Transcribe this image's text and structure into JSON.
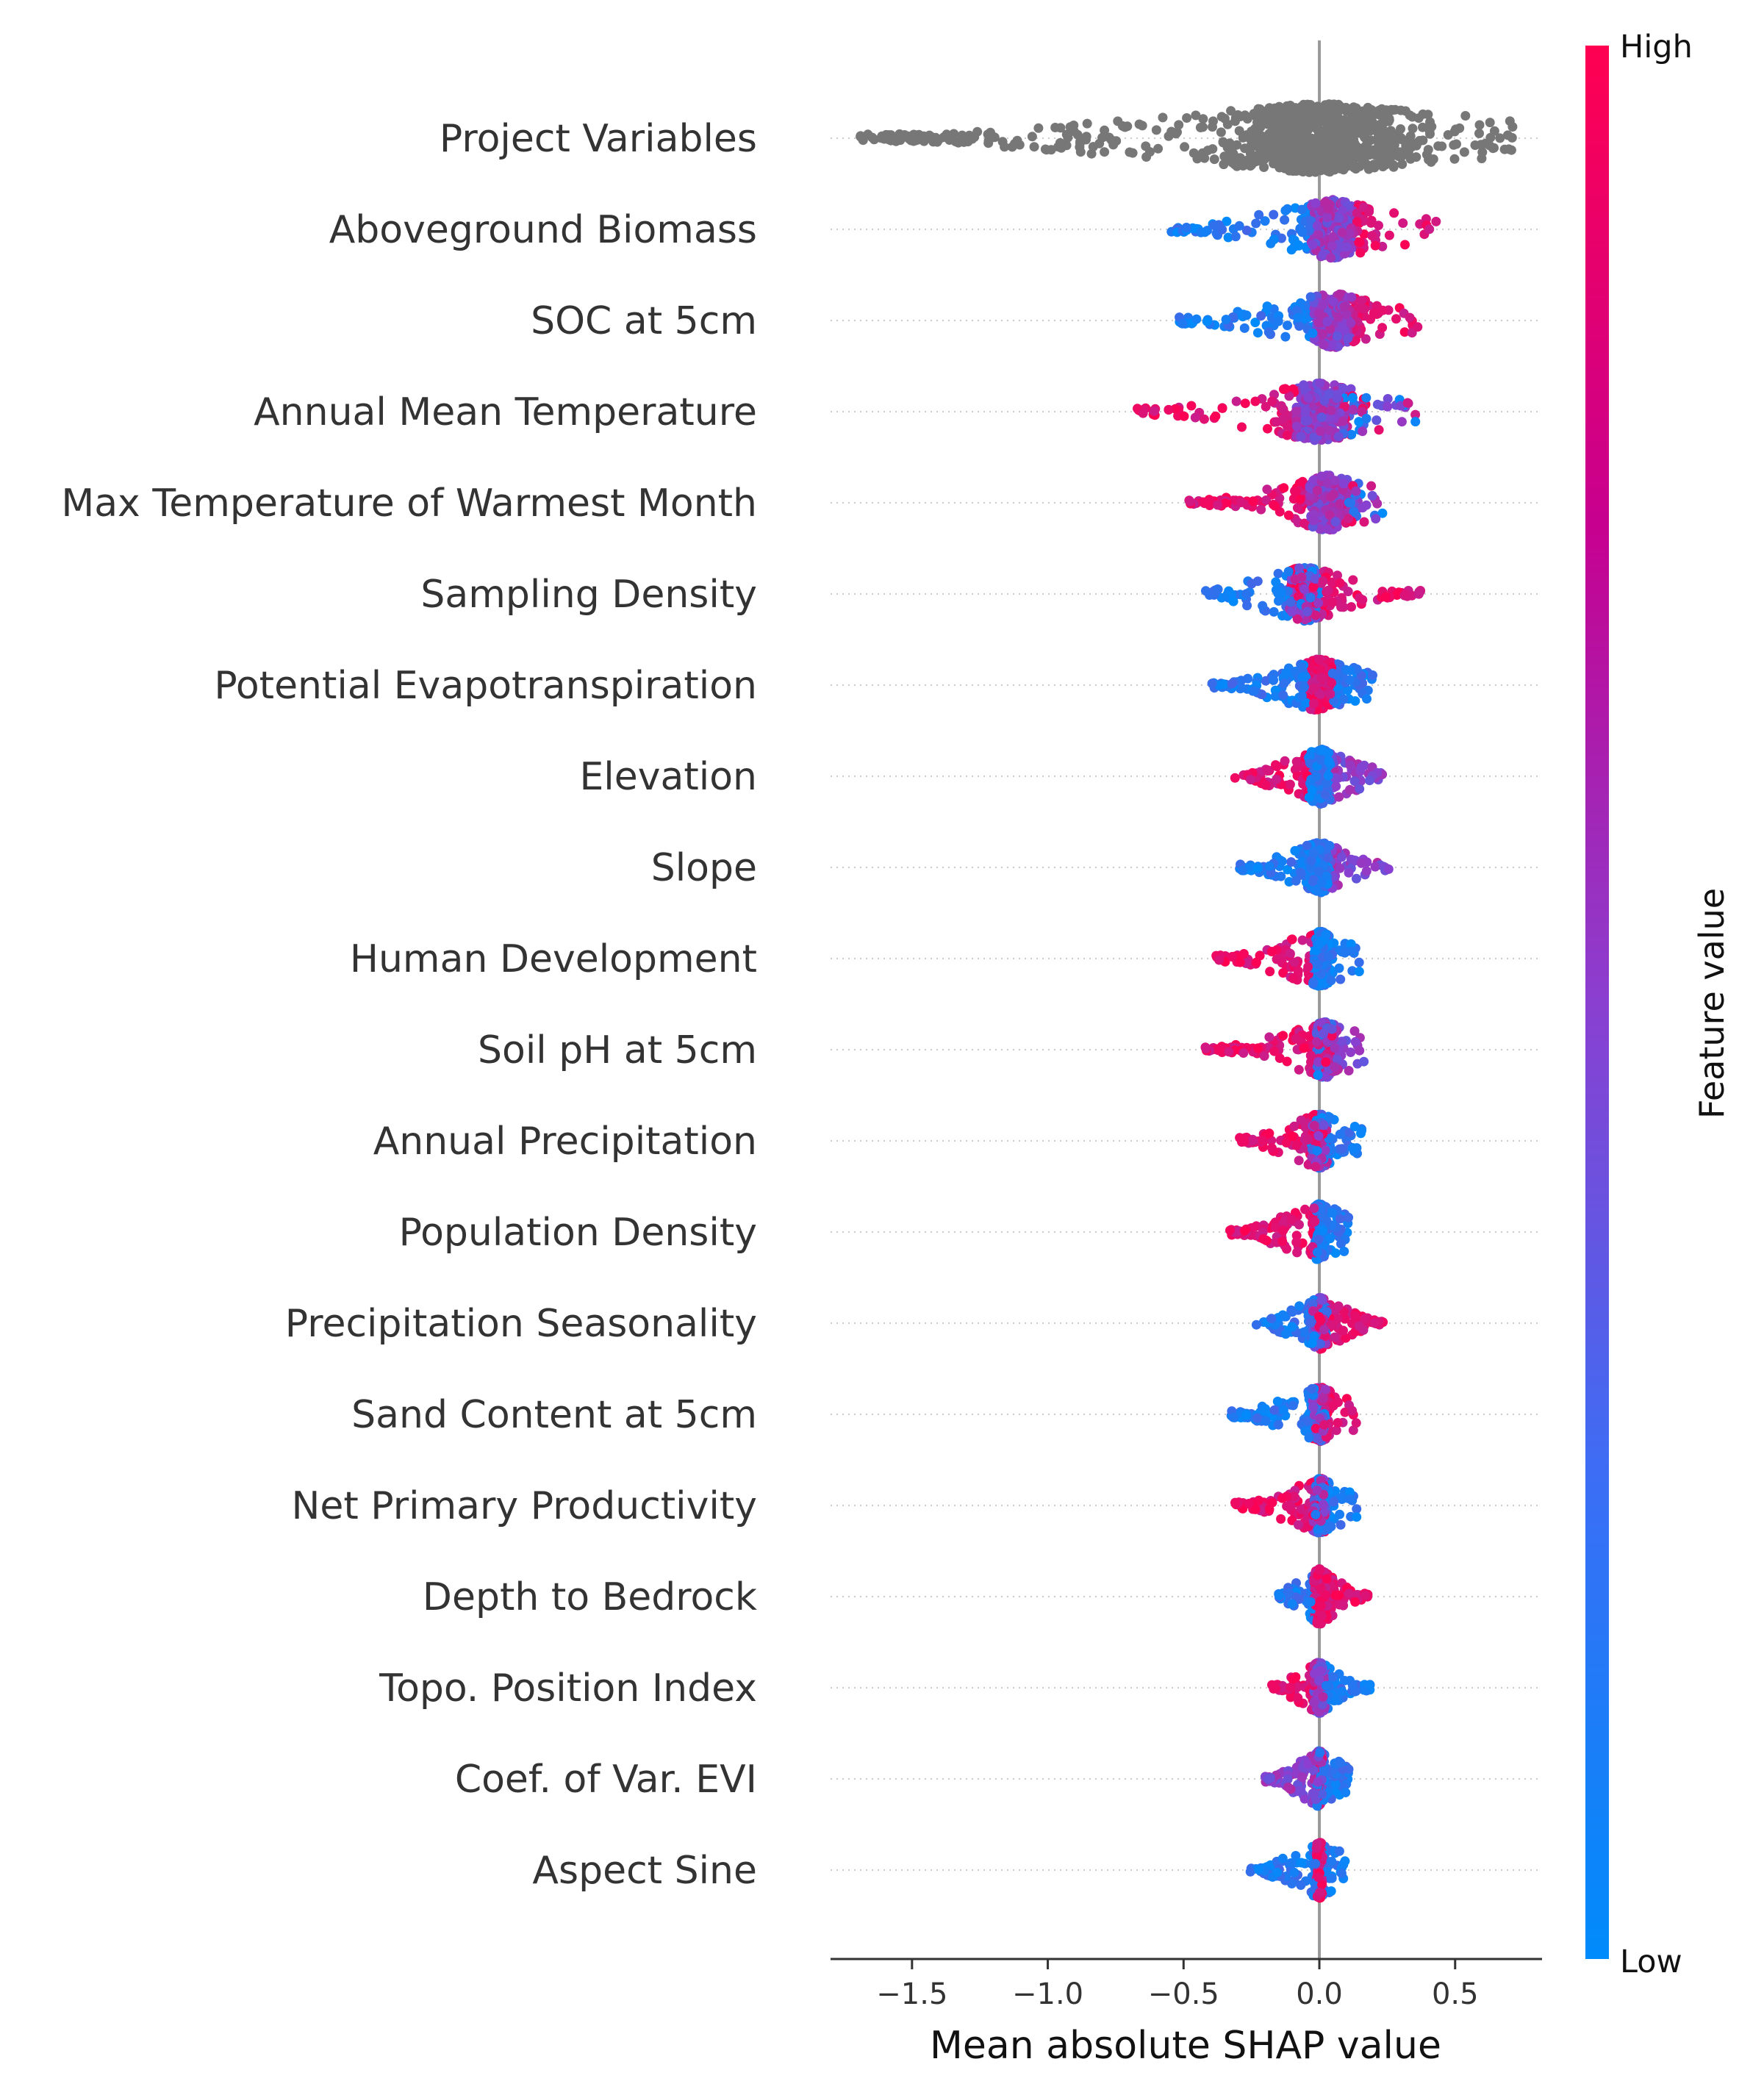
{
  "chart_data": {
    "type": "scatter",
    "subtype": "shap-beeswarm",
    "title": "",
    "xlabel": "Mean absolute SHAP value",
    "ylabel": "",
    "xlim": [
      -1.8,
      0.82
    ],
    "xticks": [
      -1.5,
      -1.0,
      -0.5,
      0.0,
      0.5
    ],
    "xtick_labels": [
      "−1.5",
      "−1.0",
      "−0.5",
      "0.0",
      "0.5"
    ],
    "zero_line": 0.0,
    "colorbar": {
      "title": "Feature value",
      "high_label": "High",
      "low_label": "Low",
      "low_color": "#008bfb",
      "high_color": "#ff0051"
    },
    "neutral_color": "#777777",
    "features": [
      {
        "name": "Project Variables",
        "min": -1.7,
        "max": 0.72,
        "neg_color": "gray",
        "pos_color": "gray",
        "center_color": "gray",
        "peak": 0.0,
        "spread": 0.55,
        "height": 1.0
      },
      {
        "name": "Aboveground Biomass",
        "min": -0.55,
        "max": 0.43,
        "neg_color": "low",
        "pos_color": "high",
        "center_color": "mid",
        "peak": 0.05,
        "spread": 0.2,
        "height": 0.85
      },
      {
        "name": "SOC at 5cm",
        "min": -0.53,
        "max": 0.37,
        "neg_color": "low",
        "pos_color": "high",
        "center_color": "mid",
        "peak": 0.05,
        "spread": 0.18,
        "height": 0.8
      },
      {
        "name": "Annual Mean Temperature",
        "min": -0.67,
        "max": 0.36,
        "neg_color": "high",
        "pos_color": "mixed",
        "center_color": "mid",
        "peak": 0.0,
        "spread": 0.22,
        "height": 0.85
      },
      {
        "name": "Max Temperature of Warmest Month",
        "min": -0.48,
        "max": 0.24,
        "neg_color": "high",
        "pos_color": "mixed",
        "center_color": "mid",
        "peak": 0.03,
        "spread": 0.17,
        "height": 0.8
      },
      {
        "name": "Sampling Density",
        "min": -0.43,
        "max": 0.38,
        "neg_color": "low",
        "pos_color": "high",
        "center_color": "mixed",
        "peak": -0.05,
        "spread": 0.15,
        "height": 0.8
      },
      {
        "name": "Potential Evapotranspiration",
        "min": -0.41,
        "max": 0.2,
        "neg_color": "low",
        "pos_color": "low",
        "center_color": "high",
        "peak": 0.0,
        "spread": 0.12,
        "height": 0.75
      },
      {
        "name": "Elevation",
        "min": -0.32,
        "max": 0.25,
        "neg_color": "high",
        "pos_color": "mid",
        "center_color": "low",
        "peak": 0.0,
        "spread": 0.1,
        "height": 0.8
      },
      {
        "name": "Slope",
        "min": -0.3,
        "max": 0.26,
        "neg_color": "low",
        "pos_color": "mid",
        "center_color": "low",
        "peak": 0.0,
        "spread": 0.1,
        "height": 0.75
      },
      {
        "name": "Human Development",
        "min": -0.38,
        "max": 0.15,
        "neg_color": "high",
        "pos_color": "low",
        "center_color": "low",
        "peak": 0.0,
        "spread": 0.06,
        "height": 0.8
      },
      {
        "name": "Soil pH at 5cm",
        "min": -0.42,
        "max": 0.17,
        "neg_color": "high",
        "pos_color": "mid",
        "center_color": "mixed",
        "peak": 0.02,
        "spread": 0.08,
        "height": 0.8
      },
      {
        "name": "Annual Precipitation",
        "min": -0.3,
        "max": 0.16,
        "neg_color": "high",
        "pos_color": "low",
        "center_color": "mixed",
        "peak": 0.0,
        "spread": 0.07,
        "height": 0.8
      },
      {
        "name": "Population Density",
        "min": -0.34,
        "max": 0.11,
        "neg_color": "high",
        "pos_color": "low",
        "center_color": "low",
        "peak": 0.0,
        "spread": 0.04,
        "height": 0.8
      },
      {
        "name": "Precipitation Seasonality",
        "min": -0.24,
        "max": 0.25,
        "neg_color": "low",
        "pos_color": "high",
        "center_color": "mixed",
        "peak": 0.0,
        "spread": 0.07,
        "height": 0.75
      },
      {
        "name": "Sand Content at 5cm",
        "min": -0.33,
        "max": 0.14,
        "neg_color": "low",
        "pos_color": "high",
        "center_color": "mixed",
        "peak": 0.0,
        "spread": 0.06,
        "height": 0.8
      },
      {
        "name": "Net Primary Productivity",
        "min": -0.31,
        "max": 0.14,
        "neg_color": "high",
        "pos_color": "low",
        "center_color": "mixed",
        "peak": 0.0,
        "spread": 0.06,
        "height": 0.8
      },
      {
        "name": "Depth to Bedrock",
        "min": -0.15,
        "max": 0.19,
        "neg_color": "low",
        "pos_color": "high",
        "center_color": "high",
        "peak": 0.0,
        "spread": 0.05,
        "height": 0.8
      },
      {
        "name": "Topo. Position Index",
        "min": -0.18,
        "max": 0.19,
        "neg_color": "high",
        "pos_color": "low",
        "center_color": "mid",
        "peak": 0.0,
        "spread": 0.05,
        "height": 0.75
      },
      {
        "name": "Coef. of Var. EVI",
        "min": -0.21,
        "max": 0.11,
        "neg_color": "mid",
        "pos_color": "low",
        "center_color": "mixed",
        "peak": 0.0,
        "spread": 0.03,
        "height": 0.8
      },
      {
        "name": "Aspect Sine",
        "min": -0.26,
        "max": 0.11,
        "neg_color": "low",
        "pos_color": "low",
        "center_color": "high",
        "peak": 0.0,
        "spread": 0.03,
        "height": 0.8
      }
    ]
  }
}
